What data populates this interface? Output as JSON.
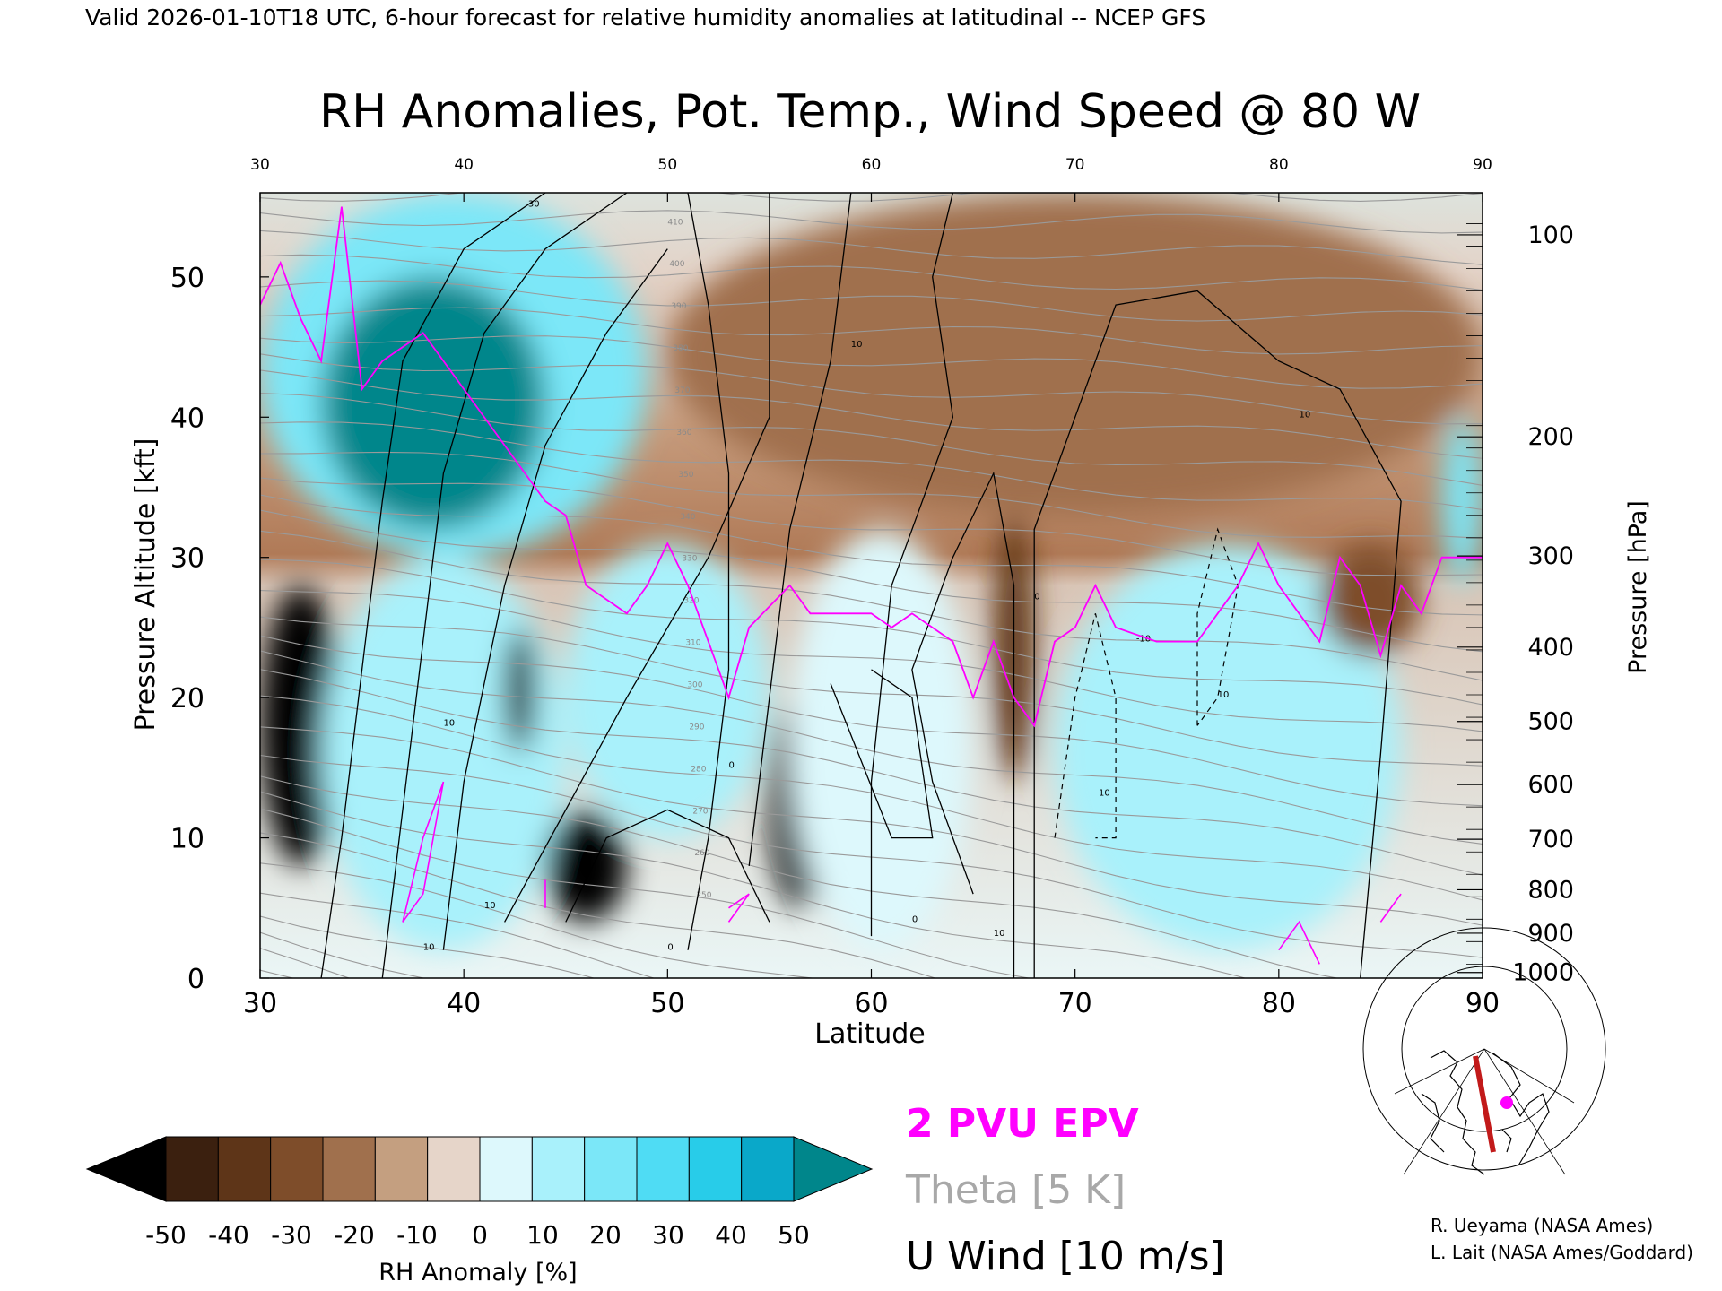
{
  "header": "Valid 2026-01-10T18 UTC, 6-hour forecast for relative humidity anomalies at latitudinal -- NCEP GFS",
  "title": "RH Anomalies, Pot. Temp., Wind Speed @ 80 W",
  "colors": {
    "epv": "#ff00ff",
    "theta": "#9a9a9a",
    "wind": "#000000",
    "moist_max": "#00868b",
    "dry_max": "#000000"
  },
  "chart_data": {
    "type": "heatmap",
    "xlabel": "Latitude",
    "ylabel_left": "Pressure Altitude [kft]",
    "ylabel_right": "Pressure [hPa]",
    "xlim": [
      30,
      90
    ],
    "ylim_kft": [
      0,
      56
    ],
    "x_ticks": [
      "30",
      "40",
      "50",
      "60",
      "70",
      "80",
      "90"
    ],
    "top_ticks": [
      "30",
      "40",
      "50",
      "60",
      "70",
      "80",
      "90"
    ],
    "y_ticks": [
      "0",
      "10",
      "20",
      "30",
      "40",
      "50"
    ],
    "pressure_ticks": [
      {
        "label": "100",
        "kft": 53.0
      },
      {
        "label": "200",
        "kft": 38.6
      },
      {
        "label": "300",
        "kft": 30.1
      },
      {
        "label": "400",
        "kft": 23.6
      },
      {
        "label": "500",
        "kft": 18.3
      },
      {
        "label": "600",
        "kft": 13.8
      },
      {
        "label": "700",
        "kft": 9.9
      },
      {
        "label": "800",
        "kft": 6.3
      },
      {
        "label": "900",
        "kft": 3.2
      },
      {
        "label": "1000",
        "kft": 0.4
      }
    ],
    "theta_range_K": [
      250,
      420
    ],
    "theta_interval_K": 5,
    "rh_anomaly_regions": [
      {
        "lat": [
          30,
          49
        ],
        "kft": [
          30,
          56
        ],
        "anomaly": 30
      },
      {
        "lat": [
          33,
          44
        ],
        "kft": [
          32,
          50
        ],
        "anomaly": 55
      },
      {
        "lat": [
          30,
          34
        ],
        "kft": [
          8,
          28
        ],
        "anomaly": -55
      },
      {
        "lat": [
          33,
          45
        ],
        "kft": [
          2,
          30
        ],
        "anomaly": 25
      },
      {
        "lat": [
          42,
          43.5
        ],
        "kft": [
          16,
          25
        ],
        "anomaly": -55
      },
      {
        "lat": [
          44,
          48
        ],
        "kft": [
          4,
          12
        ],
        "anomaly": -55
      },
      {
        "lat": [
          45,
          55
        ],
        "kft": [
          10,
          31
        ],
        "anomaly": 20
      },
      {
        "lat": [
          55,
          58
        ],
        "kft": [
          5,
          20
        ],
        "anomaly": -50
      },
      {
        "lat": [
          56,
          65
        ],
        "kft": [
          2,
          32
        ],
        "anomaly": 15
      },
      {
        "lat": [
          66,
          68
        ],
        "kft": [
          14,
          33
        ],
        "anomaly": -35
      },
      {
        "lat": [
          69,
          86
        ],
        "kft": [
          2,
          31
        ],
        "anomaly": 20
      },
      {
        "lat": [
          82,
          87
        ],
        "kft": [
          23,
          31
        ],
        "anomaly": -30
      },
      {
        "lat": [
          50,
          90
        ],
        "kft": [
          33,
          56
        ],
        "anomaly": -20
      },
      {
        "lat": [
          88,
          90
        ],
        "kft": [
          28,
          40
        ],
        "anomaly": 30
      }
    ]
  },
  "colorbar": {
    "ticks": [
      "-50",
      "-40",
      "-30",
      "-20",
      "-10",
      "0",
      "10",
      "20",
      "30",
      "40",
      "50"
    ],
    "label": "RH Anomaly [%]",
    "colors": [
      "#000000",
      "#3b200f",
      "#5e3518",
      "#7e4d2a",
      "#a0704d",
      "#c49f80",
      "#e6d5c9",
      "#ddf8fc",
      "#a9f1fb",
      "#7be7f8",
      "#4fdcf4",
      "#28cce9",
      "#0aa8c9",
      "#00868b"
    ]
  },
  "legend": {
    "epv": "2 PVU EPV",
    "theta": "Theta [5 K]",
    "wind": "U Wind [10 m/s]"
  },
  "credits": {
    "line1": "R. Ueyama (NASA Ames)",
    "line2": "L. Lait (NASA Ames/Goddard)"
  },
  "contour_labels": {
    "wind": [
      "-30",
      "10",
      "10",
      "10",
      "0",
      "0",
      "0",
      "0",
      "10",
      "10",
      "10",
      "-10",
      "-10",
      "10"
    ],
    "theta": [
      "410",
      "400",
      "390",
      "380",
      "370",
      "360",
      "350",
      "340",
      "330",
      "320",
      "310",
      "300",
      "290",
      "280",
      "270",
      "260",
      "250"
    ]
  },
  "map_inset": {
    "marker_lat": "0.5",
    "icon": "north-america-polar-map"
  }
}
